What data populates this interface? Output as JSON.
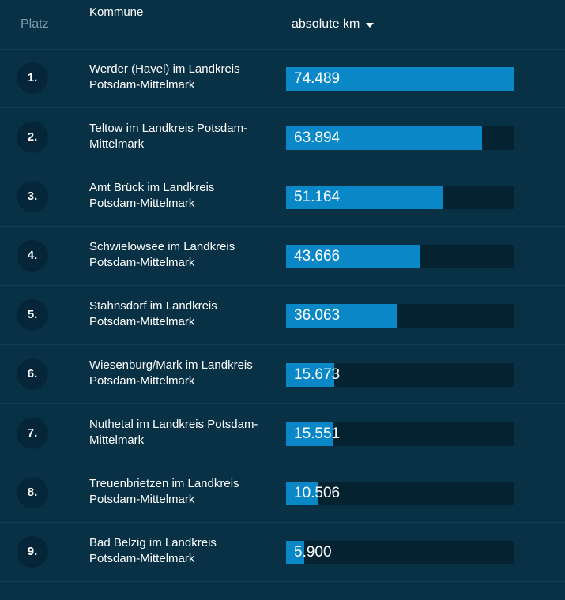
{
  "header": {
    "rank_label": "Platz",
    "name_label": "Kommune",
    "value_label": "absolute km",
    "sort_icon": "caret-down-icon"
  },
  "scale_max": 74.489,
  "colors": {
    "background": "#083146",
    "bar_fill": "#0a87c7",
    "bar_track": "#04222f",
    "badge": "#052638"
  },
  "rows": [
    {
      "rank": "1.",
      "name": "Werder (Havel) im Landkreis Potsdam-Mittelmark",
      "value": "74.489",
      "amount": 74.489
    },
    {
      "rank": "2.",
      "name": "Teltow im Landkreis Potsdam-Mittelmark",
      "value": "63.894",
      "amount": 63.894
    },
    {
      "rank": "3.",
      "name": "Amt Brück im Landkreis Potsdam-Mittelmark",
      "value": "51.164",
      "amount": 51.164
    },
    {
      "rank": "4.",
      "name": "Schwielowsee im Landkreis Potsdam-Mittelmark",
      "value": "43.666",
      "amount": 43.666
    },
    {
      "rank": "5.",
      "name": "Stahnsdorf im Landkreis Potsdam-Mittelmark",
      "value": "36.063",
      "amount": 36.063
    },
    {
      "rank": "6.",
      "name": "Wiesenburg/Mark im Landkreis Potsdam-Mittelmark",
      "value": "15.673",
      "amount": 15.673
    },
    {
      "rank": "7.",
      "name": "Nuthetal im Landkreis Potsdam-Mittelmark",
      "value": "15.551",
      "amount": 15.551
    },
    {
      "rank": "8.",
      "name": "Treuenbrietzen im Landkreis Potsdam-Mittelmark",
      "value": "10.506",
      "amount": 10.506
    },
    {
      "rank": "9.",
      "name": "Bad Belzig im Landkreis Potsdam-Mittelmark",
      "value": "5.900",
      "amount": 5.9
    }
  ]
}
